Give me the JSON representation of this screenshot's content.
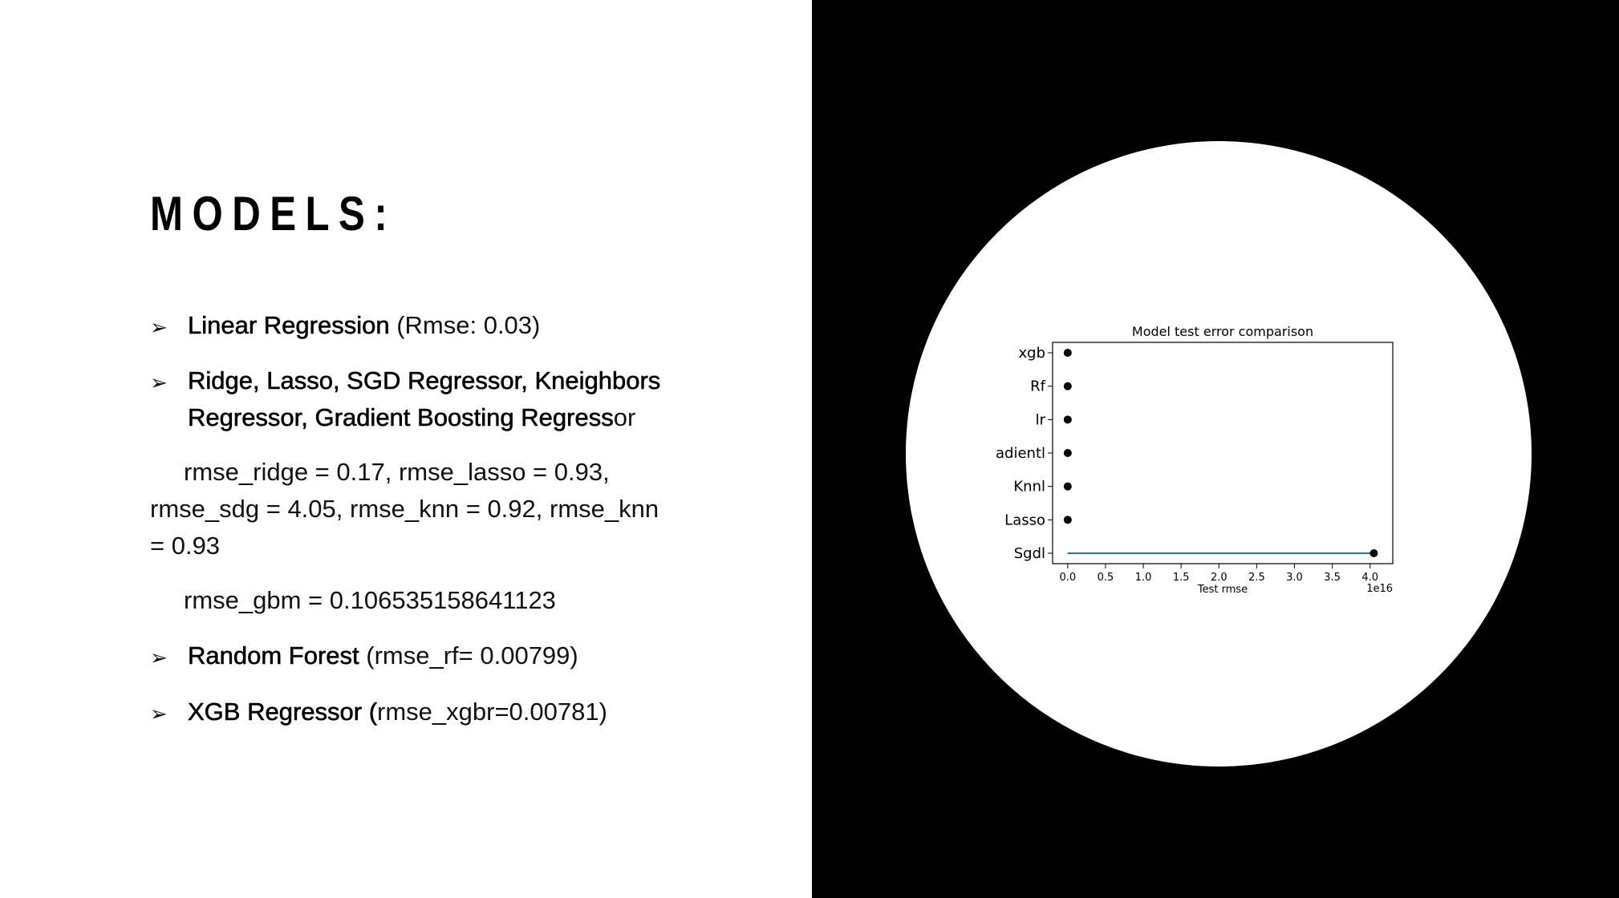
{
  "slide": {
    "title": "MODELS:",
    "bullet_glyph": "➢",
    "items": [
      {
        "bold": "Linear Regression",
        "rest": " (Rmse: 0.03)"
      },
      {
        "bold_line1": "Ridge, Lasso, SGD Regressor, Kneighbors",
        "bold_line2": "Regressor, Gradient Boosting Regress",
        "rest_line2": "or"
      },
      {
        "bold": "Random Forest",
        "rest": " (rmse_rf=  0.00799)"
      },
      {
        "bold": "XGB Regressor (",
        "rest": "rmse_xgbr=0.00781)"
      }
    ],
    "paragraph1": {
      "line1": "rmse_ridge =  0.17,   rmse_lasso =  0.93,",
      "line2": "rmse_sdg =  4.05,   rmse_knn =  0.92, rmse_knn",
      "line3": "=  0.93"
    },
    "paragraph2": "rmse_gbm = 0.106535158641123"
  },
  "chart_data": {
    "type": "scatter",
    "title": "Model test error comparison",
    "xlabel": "Test rmse",
    "ylabel": "",
    "x_offset_label": "1e16",
    "categories": [
      "xgb",
      "Rf",
      "lr",
      "adientl",
      "Knnl",
      "Lasso",
      "Sgdl"
    ],
    "values": [
      0.00781,
      0.00799,
      0.03,
      0.106535158641123,
      0.92,
      0.93,
      4.05
    ],
    "x_ticks": [
      "0.0",
      "0.5",
      "1.0",
      "1.5",
      "2.0",
      "2.5",
      "3.0",
      "3.5",
      "4.0"
    ],
    "xlim": [
      -0.2,
      4.3
    ],
    "marker_color": "#000000",
    "line_color": "#1f77b4"
  }
}
